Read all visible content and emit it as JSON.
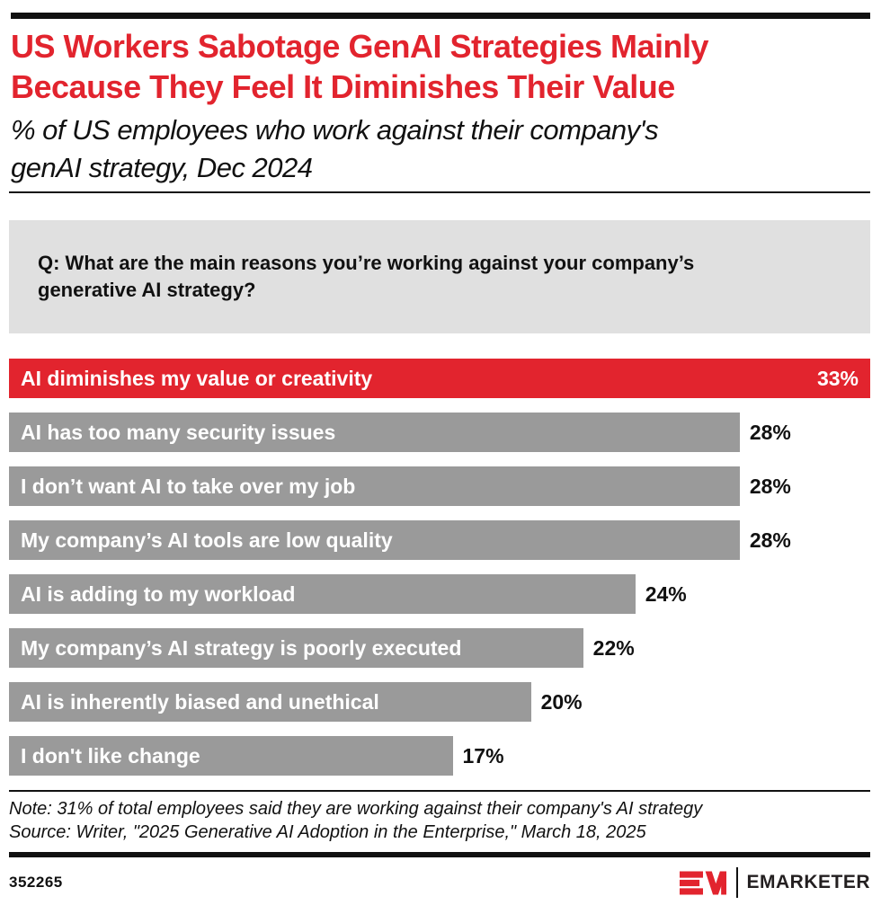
{
  "colors": {
    "accent_red": "#e2242e",
    "bar_gray": "#9a9a9a",
    "box_gray": "#e0e0e0",
    "text_black": "#111111",
    "logo_dark": "#231f20"
  },
  "header": {
    "title_lines": [
      "US Workers Sabotage GenAI Strategies Mainly",
      "Because They Feel It Diminishes Their Value"
    ],
    "subtitle_lines": [
      "% of US employees who work against their company's",
      "genAI strategy, Dec 2024"
    ]
  },
  "question": {
    "lines": [
      "Q: What are the main reasons you’re working against your company’s",
      "generative AI strategy?"
    ]
  },
  "chart_data": {
    "type": "bar",
    "orientation": "horizontal",
    "title": "US Workers Sabotage GenAI Strategies Mainly Because They Feel It Diminishes Their Value",
    "subtitle": "% of US employees who work against their company's genAI strategy, Dec 2024",
    "categories": [
      "AI diminishes my value or creativity",
      "AI has too many security issues",
      "I don’t want AI to take over my job",
      "My company’s AI tools are low quality",
      "AI is adding to my workload",
      "My company’s AI strategy is poorly executed",
      "AI is inherently biased and unethical",
      "I don't like change"
    ],
    "values": [
      33,
      28,
      28,
      28,
      24,
      22,
      20,
      17
    ],
    "unit": "%",
    "xlim": [
      0,
      33
    ],
    "highlight_index": 0,
    "grid": false,
    "legend": false,
    "value_labels": "end-of-bar"
  },
  "footer": {
    "note": "Note: 31% of total employees said they are working against their company's AI strategy",
    "source": "Source: Writer, \"2025 Generative AI Adoption in the Enterprise,\" March 18, 2025",
    "chart_id": "352265",
    "brand": "EMARKETER",
    "logo_icon": "em-monogram"
  }
}
